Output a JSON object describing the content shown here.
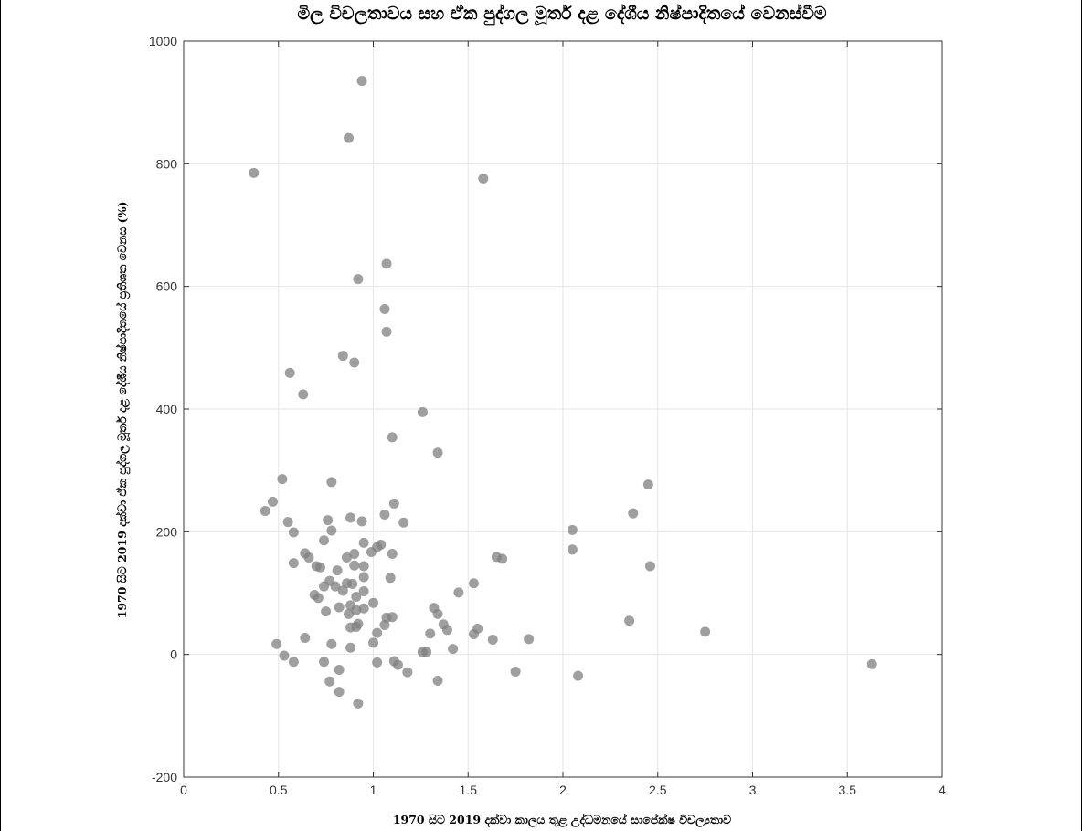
{
  "chart_data": {
    "type": "scatter",
    "title": "මිල විචලතාවය සහ ඒක පුද්ගල මූර්ත දළ දේශීය නිෂ්පාදිතයේ වෙනස්වීම",
    "xlabel": "1970 සිට 2019 දක්වා කාලය තුළ උද්ධමනයේ සාපේක්ෂ විචල්‍යතාව",
    "ylabel": "1970 සිට 2019 දක්වා ඒක පුද්ගල මූර්ත දළ දේශීය නිෂ්පාදිතයේ ප්‍රතිශත වෙනස (%)",
    "xlim": [
      0,
      4
    ],
    "ylim": [
      -200,
      1000
    ],
    "xticks": [
      0,
      0.5,
      1,
      1.5,
      2,
      2.5,
      3,
      3.5,
      4
    ],
    "xtick_labels": [
      "0",
      "0.5",
      "1",
      "1.5",
      "2",
      "2.5",
      "3",
      "3.5",
      "4"
    ],
    "yticks": [
      -200,
      0,
      200,
      400,
      600,
      800,
      1000
    ],
    "ytick_labels": [
      "-200",
      "0",
      "200",
      "400",
      "600",
      "800",
      "1000"
    ],
    "grid": true,
    "marker_color": "#7f7f7f",
    "points": [
      [
        0.37,
        785
      ],
      [
        0.94,
        935
      ],
      [
        0.87,
        842
      ],
      [
        1.58,
        776
      ],
      [
        0.92,
        612
      ],
      [
        1.07,
        637
      ],
      [
        1.06,
        563
      ],
      [
        1.07,
        526
      ],
      [
        0.84,
        487
      ],
      [
        0.9,
        476
      ],
      [
        0.56,
        459
      ],
      [
        0.63,
        424
      ],
      [
        1.26,
        395
      ],
      [
        1.1,
        354
      ],
      [
        1.34,
        329
      ],
      [
        0.43,
        234
      ],
      [
        0.47,
        249
      ],
      [
        0.52,
        286
      ],
      [
        0.55,
        216
      ],
      [
        0.58,
        199
      ],
      [
        0.78,
        281
      ],
      [
        0.76,
        219
      ],
      [
        0.78,
        202
      ],
      [
        0.88,
        223
      ],
      [
        0.94,
        217
      ],
      [
        1.06,
        228
      ],
      [
        1.11,
        246
      ],
      [
        1.16,
        215
      ],
      [
        0.74,
        186
      ],
      [
        0.95,
        182
      ],
      [
        1.04,
        179
      ],
      [
        1.02,
        175
      ],
      [
        0.99,
        167
      ],
      [
        1.1,
        164
      ],
      [
        0.64,
        165
      ],
      [
        0.66,
        158
      ],
      [
        0.58,
        149
      ],
      [
        0.7,
        144
      ],
      [
        0.72,
        142
      ],
      [
        0.86,
        158
      ],
      [
        0.9,
        164
      ],
      [
        0.9,
        145
      ],
      [
        0.95,
        144
      ],
      [
        0.81,
        137
      ],
      [
        0.74,
        111
      ],
      [
        0.77,
        120
      ],
      [
        0.8,
        111
      ],
      [
        0.86,
        116
      ],
      [
        0.89,
        115
      ],
      [
        0.95,
        126
      ],
      [
        1.09,
        125
      ],
      [
        0.69,
        97
      ],
      [
        0.71,
        92
      ],
      [
        0.84,
        104
      ],
      [
        0.91,
        94
      ],
      [
        0.95,
        103
      ],
      [
        1.0,
        84
      ],
      [
        0.75,
        70
      ],
      [
        0.82,
        77
      ],
      [
        0.87,
        66
      ],
      [
        0.88,
        80
      ],
      [
        0.91,
        72
      ],
      [
        0.95,
        75
      ],
      [
        0.88,
        44
      ],
      [
        0.91,
        45
      ],
      [
        0.92,
        50
      ],
      [
        0.64,
        27
      ],
      [
        0.49,
        17
      ],
      [
        0.78,
        17
      ],
      [
        0.88,
        11
      ],
      [
        1.0,
        19
      ],
      [
        1.02,
        35
      ],
      [
        1.06,
        48
      ],
      [
        1.07,
        60
      ],
      [
        1.1,
        61
      ],
      [
        0.53,
        -2
      ],
      [
        0.58,
        -12
      ],
      [
        0.74,
        -12
      ],
      [
        0.77,
        -44
      ],
      [
        0.82,
        -25
      ],
      [
        0.82,
        -61
      ],
      [
        0.92,
        -80
      ],
      [
        1.02,
        -13
      ],
      [
        1.11,
        -11
      ],
      [
        1.13,
        -17
      ],
      [
        1.18,
        -29
      ],
      [
        1.26,
        4
      ],
      [
        1.28,
        4
      ],
      [
        1.3,
        34
      ],
      [
        1.32,
        76
      ],
      [
        1.34,
        66
      ],
      [
        1.37,
        49
      ],
      [
        1.39,
        40
      ],
      [
        1.42,
        9
      ],
      [
        1.45,
        101
      ],
      [
        1.34,
        -43
      ],
      [
        1.53,
        116
      ],
      [
        1.53,
        33
      ],
      [
        1.55,
        42
      ],
      [
        1.63,
        24
      ],
      [
        1.65,
        159
      ],
      [
        1.68,
        156
      ],
      [
        1.75,
        -28
      ],
      [
        1.82,
        25
      ],
      [
        2.05,
        203
      ],
      [
        2.05,
        171
      ],
      [
        2.08,
        -35
      ],
      [
        2.35,
        55
      ],
      [
        2.37,
        230
      ],
      [
        2.45,
        277
      ],
      [
        2.46,
        144
      ],
      [
        2.75,
        37
      ],
      [
        3.63,
        -16
      ]
    ]
  }
}
